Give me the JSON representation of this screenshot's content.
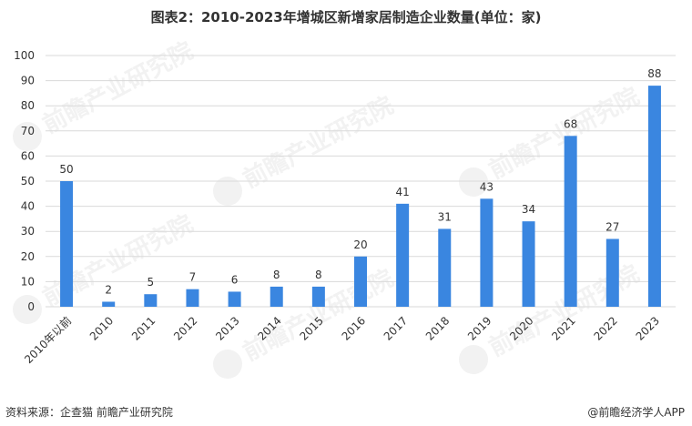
{
  "chart_data": {
    "type": "bar",
    "title": "图表2：2010-2023年增城区新增家居制造企业数量(单位：家)",
    "categories": [
      "2010年以前",
      "2010",
      "2011",
      "2012",
      "2013",
      "2014",
      "2015",
      "2016",
      "2017",
      "2018",
      "2019",
      "2020",
      "2021",
      "2022",
      "2023"
    ],
    "values": [
      50,
      2,
      5,
      7,
      6,
      8,
      8,
      20,
      41,
      31,
      43,
      34,
      68,
      27,
      88
    ],
    "ylim": [
      0,
      100
    ],
    "yticks": [
      0,
      10,
      20,
      30,
      40,
      50,
      60,
      70,
      80,
      90,
      100
    ],
    "xlabel": "",
    "ylabel": "",
    "grid": true,
    "bar_color": "#3a86e0",
    "data_labels": true
  },
  "footer": {
    "source": "资料来源：企查猫 前瞻产业研究院",
    "brand": "@前瞻经济学人APP"
  },
  "watermark": {
    "text": "前瞻产业研究院",
    "icon": "qianzhan-logo-icon"
  }
}
